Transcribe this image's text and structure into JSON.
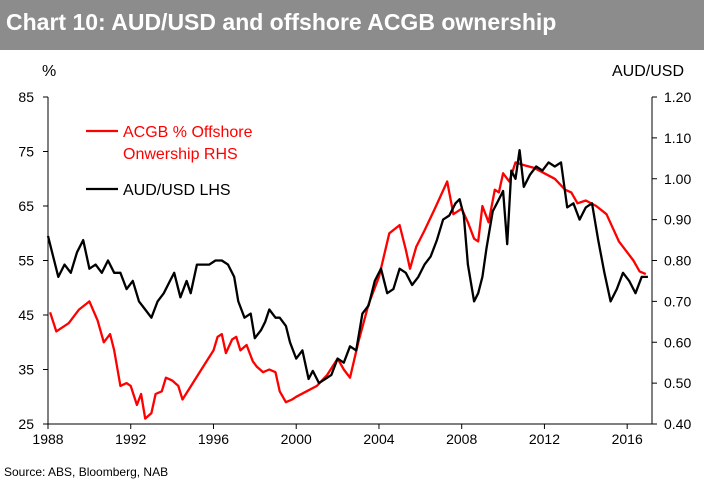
{
  "title": "Chart 10: AUD/USD and offshore ACGB ownership",
  "source": "Source: ABS, Bloomberg, NAB",
  "colors": {
    "title_bg": "#8c8c8c",
    "series_red": "#ff0000",
    "series_black": "#000000"
  },
  "chart_data": {
    "type": "line",
    "title": "Chart 10: AUD/USD and offshore ACGB ownership",
    "ylabel_left": "%",
    "ylabel_right": "AUD/USD",
    "xlim": [
      1988,
      2017.2
    ],
    "ylim_left": [
      25,
      85
    ],
    "ylim_right": [
      0.4,
      1.2
    ],
    "x_ticks": [
      "1988",
      "1992",
      "1996",
      "2000",
      "2004",
      "2008",
      "2012",
      "2016"
    ],
    "y_left_ticks": [
      "85",
      "75",
      "65",
      "55",
      "45",
      "35",
      "25"
    ],
    "y_right_ticks": [
      "1.20",
      "1.10",
      "1.00",
      "0.90",
      "0.80",
      "0.70",
      "0.60",
      "0.50",
      "0.40"
    ],
    "grid": false,
    "legend_position": "top-left",
    "series": [
      {
        "name": "ACGB % Offshore Onwership RHS",
        "legend_lines": [
          "ACGB % Offshore",
          "Onwership RHS"
        ],
        "color": "#ff0000",
        "axis": "left",
        "x": [
          1988.1,
          1988.4,
          1989.0,
          1989.5,
          1990.0,
          1990.4,
          1990.7,
          1991.0,
          1991.2,
          1991.5,
          1991.8,
          1992.0,
          1992.3,
          1992.5,
          1992.7,
          1993.0,
          1993.2,
          1993.5,
          1993.7,
          1994.0,
          1994.3,
          1994.5,
          1995.0,
          1995.5,
          1996.0,
          1996.2,
          1996.4,
          1996.6,
          1996.9,
          1997.1,
          1997.3,
          1997.6,
          1997.9,
          1998.1,
          1998.4,
          1998.7,
          1999.0,
          1999.2,
          1999.5,
          1999.8,
          2000.0,
          2000.5,
          2001.0,
          2001.5,
          2002.0,
          2002.3,
          2002.6,
          2003.0,
          2003.5,
          2004.0,
          2004.5,
          2005.0,
          2005.3,
          2005.5,
          2005.8,
          2006.2,
          2006.7,
          2007.0,
          2007.3,
          2007.6,
          2008.0,
          2008.3,
          2008.6,
          2008.8,
          2009.0,
          2009.3,
          2009.6,
          2009.8,
          2010.0,
          2010.3,
          2010.6,
          2011.0,
          2011.5,
          2012.0,
          2012.5,
          2013.0,
          2013.3,
          2013.6,
          2014.0,
          2014.5,
          2015.0,
          2015.3,
          2015.6,
          2016.0,
          2016.3,
          2016.6,
          2016.9
        ],
        "values": [
          45.5,
          42.0,
          43.5,
          46.0,
          47.5,
          44.0,
          40.0,
          41.5,
          38.5,
          32.0,
          32.5,
          32.0,
          28.5,
          30.5,
          26.0,
          27.0,
          30.5,
          31.0,
          33.5,
          33.0,
          32.0,
          29.5,
          32.5,
          35.5,
          38.5,
          41.0,
          41.5,
          38.0,
          40.5,
          41.0,
          38.5,
          39.5,
          36.5,
          35.5,
          34.5,
          35.0,
          34.5,
          31.0,
          29.0,
          29.5,
          30.0,
          31.0,
          32.0,
          34.0,
          37.0,
          35.0,
          33.5,
          40.0,
          47.0,
          52.0,
          60.0,
          61.5,
          57.0,
          53.5,
          57.5,
          60.5,
          64.5,
          67.0,
          69.5,
          63.5,
          64.5,
          62.0,
          59.0,
          58.5,
          65.0,
          62.0,
          68.0,
          67.5,
          71.0,
          69.5,
          73.0,
          72.5,
          72.0,
          71.0,
          70.0,
          68.0,
          67.5,
          65.5,
          66.0,
          65.0,
          63.5,
          61.0,
          58.5,
          56.5,
          55.0,
          53.0,
          52.5
        ]
      },
      {
        "name": "AUD/USD LHS",
        "color": "#000000",
        "axis": "right",
        "x": [
          1988.0,
          1988.2,
          1988.5,
          1988.8,
          1989.1,
          1989.4,
          1989.7,
          1990.0,
          1990.3,
          1990.6,
          1990.9,
          1991.2,
          1991.5,
          1991.8,
          1992.1,
          1992.4,
          1992.7,
          1993.0,
          1993.3,
          1993.6,
          1993.9,
          1994.1,
          1994.4,
          1994.7,
          1994.9,
          1995.2,
          1995.5,
          1995.8,
          1996.1,
          1996.4,
          1996.7,
          1997.0,
          1997.2,
          1997.5,
          1997.8,
          1998.0,
          1998.3,
          1998.5,
          1998.7,
          1999.0,
          1999.2,
          1999.5,
          1999.7,
          2000.0,
          2000.3,
          2000.6,
          2000.8,
          2001.1,
          2001.4,
          2001.7,
          2002.0,
          2002.3,
          2002.6,
          2002.9,
          2003.2,
          2003.5,
          2003.8,
          2004.1,
          2004.4,
          2004.7,
          2005.0,
          2005.3,
          2005.6,
          2005.9,
          2006.2,
          2006.5,
          2006.8,
          2007.1,
          2007.4,
          2007.7,
          2007.9,
          2008.1,
          2008.3,
          2008.6,
          2008.8,
          2009.0,
          2009.2,
          2009.5,
          2009.7,
          2010.0,
          2010.2,
          2010.4,
          2010.6,
          2010.8,
          2011.0,
          2011.3,
          2011.6,
          2011.9,
          2012.2,
          2012.5,
          2012.8,
          2013.1,
          2013.4,
          2013.7,
          2014.0,
          2014.3,
          2014.6,
          2014.9,
          2015.2,
          2015.5,
          2015.8,
          2016.1,
          2016.4,
          2016.7,
          2017.0
        ],
        "values": [
          0.86,
          0.82,
          0.76,
          0.79,
          0.77,
          0.82,
          0.85,
          0.78,
          0.79,
          0.77,
          0.8,
          0.77,
          0.77,
          0.73,
          0.75,
          0.7,
          0.68,
          0.66,
          0.7,
          0.72,
          0.75,
          0.77,
          0.71,
          0.75,
          0.72,
          0.79,
          0.79,
          0.79,
          0.8,
          0.8,
          0.79,
          0.76,
          0.7,
          0.66,
          0.67,
          0.61,
          0.63,
          0.65,
          0.68,
          0.66,
          0.66,
          0.64,
          0.6,
          0.56,
          0.58,
          0.51,
          0.53,
          0.5,
          0.51,
          0.52,
          0.56,
          0.55,
          0.59,
          0.58,
          0.67,
          0.69,
          0.75,
          0.78,
          0.72,
          0.73,
          0.78,
          0.77,
          0.74,
          0.76,
          0.79,
          0.81,
          0.85,
          0.9,
          0.91,
          0.94,
          0.95,
          0.91,
          0.79,
          0.7,
          0.72,
          0.76,
          0.83,
          0.92,
          0.94,
          0.97,
          0.84,
          1.02,
          1.0,
          1.07,
          0.98,
          1.01,
          1.03,
          1.02,
          1.04,
          1.03,
          1.04,
          0.93,
          0.94,
          0.9,
          0.93,
          0.94,
          0.85,
          0.77,
          0.7,
          0.73,
          0.77,
          0.75,
          0.72,
          0.76,
          0.76
        ]
      }
    ]
  }
}
